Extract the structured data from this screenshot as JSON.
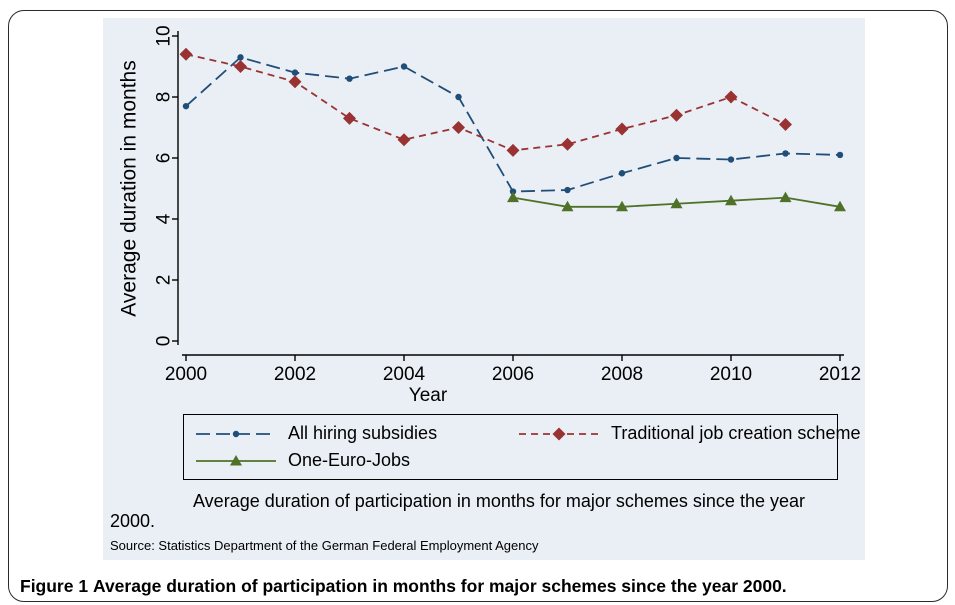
{
  "figure": {
    "label": "Figure 1",
    "caption": "Average duration of participation in months for major schemes since the year 2000."
  },
  "note": "Average duration of participation in months for major schemes since the year 2000.",
  "source": "Source: Statistics Department of the German Federal Employment Agency",
  "colors": {
    "panel_bg": "#e9eff5",
    "series_blue": "#1f4e79",
    "series_red": "#993333",
    "series_green": "#4f7228"
  },
  "chart_data": {
    "type": "line",
    "title": "",
    "xlabel": "Year",
    "ylabel": "Average duration in months",
    "xlim": [
      2000,
      2012
    ],
    "ylim": [
      0,
      10
    ],
    "x_ticks": [
      "2000",
      "2002",
      "2004",
      "2006",
      "2008",
      "2010",
      "2012"
    ],
    "y_ticks": [
      "0",
      "2",
      "4",
      "6",
      "8",
      "10"
    ],
    "grid": false,
    "legend_position": "bottom",
    "series": [
      {
        "name": "All hiring subsidies",
        "color": "#1f4e79",
        "line_style": "long-dash",
        "marker": "circle",
        "x": [
          2000,
          2001,
          2002,
          2003,
          2004,
          2005,
          2006,
          2007,
          2008,
          2009,
          2010,
          2011,
          2012
        ],
        "y": [
          7.7,
          9.3,
          8.8,
          8.6,
          9.0,
          8.0,
          4.9,
          4.95,
          5.5,
          6.0,
          5.95,
          6.15,
          6.1
        ]
      },
      {
        "name": "Traditional job creation scheme",
        "color": "#993333",
        "line_style": "short-dash",
        "marker": "diamond",
        "x": [
          2000,
          2001,
          2002,
          2003,
          2004,
          2005,
          2006,
          2007,
          2008,
          2009,
          2010,
          2011
        ],
        "y": [
          9.4,
          9.0,
          8.5,
          7.3,
          6.6,
          7.0,
          6.25,
          6.45,
          6.95,
          7.4,
          8.0,
          7.1
        ]
      },
      {
        "name": "One-Euro-Jobs",
        "color": "#4f7228",
        "line_style": "solid",
        "marker": "triangle",
        "x": [
          2006,
          2007,
          2008,
          2009,
          2010,
          2011,
          2012
        ],
        "y": [
          4.7,
          4.4,
          4.4,
          4.5,
          4.6,
          4.7,
          4.4
        ]
      }
    ]
  }
}
